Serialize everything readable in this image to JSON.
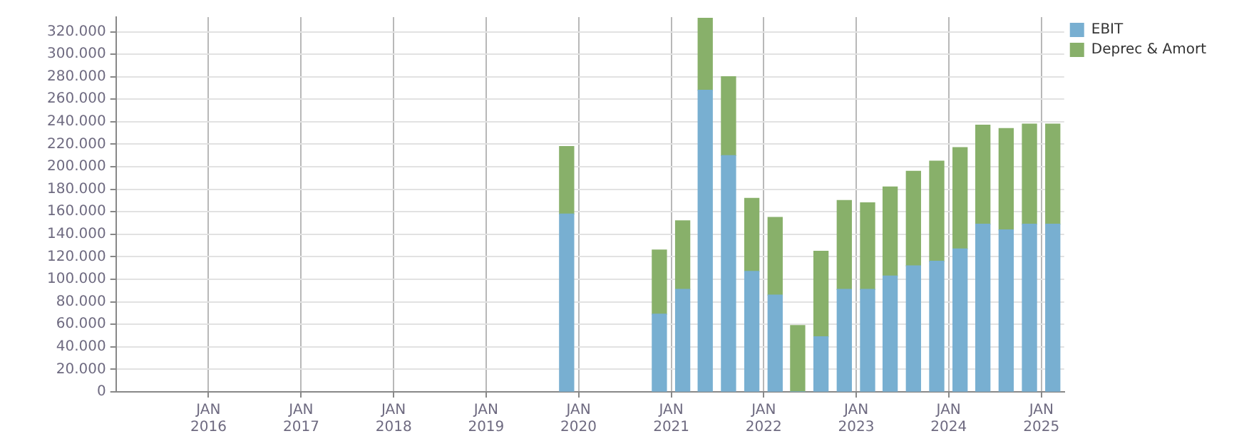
{
  "chart_data": {
    "type": "bar",
    "stacked": true,
    "grid": true,
    "legend": "top right",
    "x": [
      "2019-11-15",
      "2020-11-15",
      "2021-02-15",
      "2021-05-15",
      "2021-08-15",
      "2021-11-15",
      "2022-02-15",
      "2022-05-15",
      "2022-08-15",
      "2022-11-15",
      "2023-02-15",
      "2023-05-15",
      "2023-08-15",
      "2023-11-15",
      "2024-02-15",
      "2024-05-15",
      "2024-08-15",
      "2024-11-15",
      "2025-02-15"
    ],
    "series": [
      {
        "name": "EBIT",
        "color": "#78afd1",
        "values": [
          158000,
          69000,
          91000,
          268000,
          210000,
          107000,
          86000,
          0,
          49000,
          91000,
          91000,
          103000,
          112000,
          116000,
          127000,
          149000,
          144000,
          149000,
          149000
        ]
      },
      {
        "name": "Deprec & Amort",
        "color": "#88b06a",
        "values": [
          60000,
          57000,
          61000,
          64000,
          70000,
          65000,
          69000,
          59000,
          76000,
          79000,
          77000,
          79000,
          84000,
          89000,
          90000,
          88000,
          90000,
          89000,
          89000
        ]
      }
    ],
    "xlim": [
      "2015-01-01",
      "2025-04-01"
    ],
    "xticks": [
      {
        "value": "2016-01-01",
        "label": "JAN\n2016"
      },
      {
        "value": "2017-01-01",
        "label": "JAN\n2017"
      },
      {
        "value": "2018-01-01",
        "label": "JAN\n2018"
      },
      {
        "value": "2019-01-01",
        "label": "JAN\n2019"
      },
      {
        "value": "2020-01-01",
        "label": "JAN\n2020"
      },
      {
        "value": "2021-01-01",
        "label": "JAN\n2021"
      },
      {
        "value": "2022-01-01",
        "label": "JAN\n2022"
      },
      {
        "value": "2023-01-01",
        "label": "JAN\n2023"
      },
      {
        "value": "2024-01-01",
        "label": "JAN\n2024"
      },
      {
        "value": "2025-01-01",
        "label": "JAN\n2025"
      }
    ],
    "ylim": [
      0,
      333000
    ],
    "yticks": [
      {
        "value": 0,
        "label": "0"
      },
      {
        "value": 20000,
        "label": "20.000"
      },
      {
        "value": 40000,
        "label": "40.000"
      },
      {
        "value": 60000,
        "label": "60.000"
      },
      {
        "value": 80000,
        "label": "80.000"
      },
      {
        "value": 100000,
        "label": "100.000"
      },
      {
        "value": 120000,
        "label": "120.000"
      },
      {
        "value": 140000,
        "label": "140.000"
      },
      {
        "value": 160000,
        "label": "160.000"
      },
      {
        "value": 180000,
        "label": "180.000"
      },
      {
        "value": 200000,
        "label": "200.000"
      },
      {
        "value": 220000,
        "label": "220.000"
      },
      {
        "value": 240000,
        "label": "240.000"
      },
      {
        "value": 260000,
        "label": "260.000"
      },
      {
        "value": 280000,
        "label": "280.000"
      },
      {
        "value": 300000,
        "label": "300.000"
      },
      {
        "value": 320000,
        "label": "320.000"
      }
    ]
  }
}
